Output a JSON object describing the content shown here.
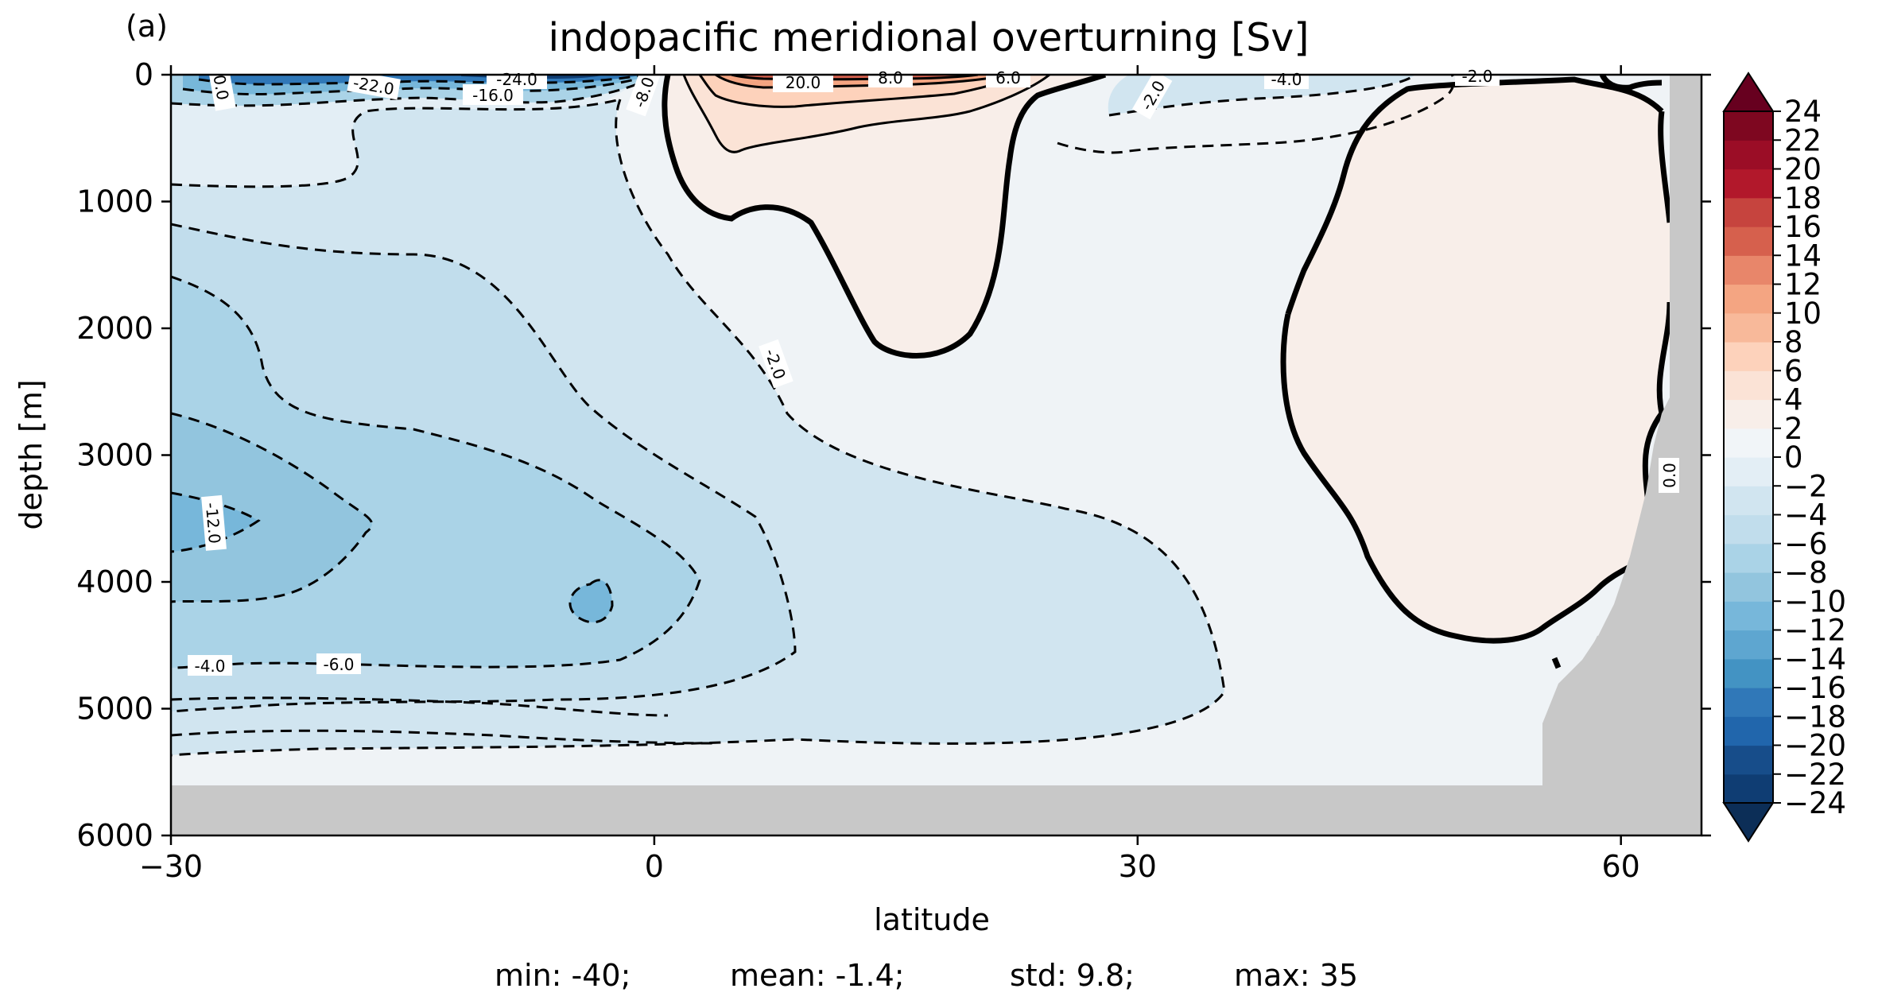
{
  "chart_data": {
    "type": "heatmap",
    "panel_label": "(a)",
    "title": "indopacific meridional overturning [Sv]",
    "xlabel": "latitude",
    "ylabel": "depth [m]",
    "xlim": [
      -30,
      65
    ],
    "ylim": [
      6000,
      0
    ],
    "xticks": [
      -30,
      0,
      30,
      60
    ],
    "xtick_labels": [
      "−30",
      "0",
      "30",
      "60"
    ],
    "yticks": [
      0,
      1000,
      2000,
      3000,
      4000,
      5000,
      6000
    ],
    "ytick_labels": [
      "0",
      "1000",
      "2000",
      "3000",
      "4000",
      "5000",
      "6000"
    ],
    "colorbar": {
      "levels": [
        -24,
        -22,
        -20,
        -18,
        -16,
        -14,
        -12,
        -10,
        -8,
        -6,
        -4,
        -2,
        0,
        2,
        4,
        6,
        8,
        10,
        12,
        14,
        16,
        18,
        20,
        22,
        24
      ],
      "tick_labels": [
        "24",
        "22",
        "20",
        "18",
        "16",
        "14",
        "12",
        "10",
        "8",
        "6",
        "4",
        "2",
        "0",
        "−2",
        "−4",
        "−6",
        "−8",
        "−10",
        "−12",
        "−14",
        "−16",
        "−18",
        "−20",
        "−22",
        "−24"
      ],
      "extend": "both",
      "cmap": "RdBu_r",
      "colors": [
        "#0f3d73",
        "#174d8a",
        "#2166ac",
        "#3078b8",
        "#4393c3",
        "#5ea6d0",
        "#77b7da",
        "#92c5de",
        "#aad3e7",
        "#c1ddec",
        "#d1e5f0",
        "#e3eef5",
        "#f1f5f8",
        "#f8eee9",
        "#fbe3d6",
        "#fdd2bb",
        "#f8b99a",
        "#f4a582",
        "#e8866a",
        "#d6604d",
        "#c6443e",
        "#b2182b",
        "#9b0d26",
        "#7e0720"
      ],
      "under_color": "#0c2e57",
      "over_color": "#67001f"
    },
    "contour_labels": [
      "0.0",
      "-2.0",
      "-4.0",
      "-6.0",
      "-8.0",
      "-12.0",
      "-16.0",
      "-22.0",
      "-24.0",
      "20.0",
      "8.0",
      "6.0"
    ],
    "stats": {
      "min": "min: -40;",
      "mean": "mean: -1.4;",
      "std": "std: 9.8;",
      "max": "max: 35"
    },
    "land_color": "#c8c8c8"
  }
}
